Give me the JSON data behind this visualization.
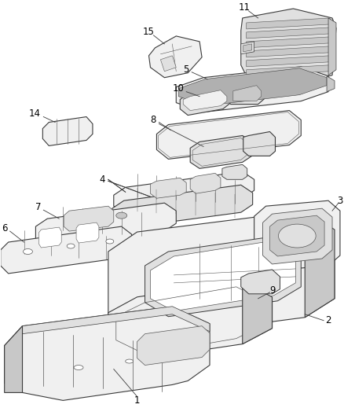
{
  "bg": "#ffffff",
  "lc": "#3a3a3a",
  "lc2": "#555555",
  "lw_main": 0.8,
  "lw_inner": 0.5,
  "fc_light": "#f0f0f0",
  "fc_mid": "#e0e0e0",
  "fc_dark": "#c8c8c8",
  "label_fs": 8.5,
  "figsize": [
    4.38,
    5.33
  ],
  "dpi": 100
}
